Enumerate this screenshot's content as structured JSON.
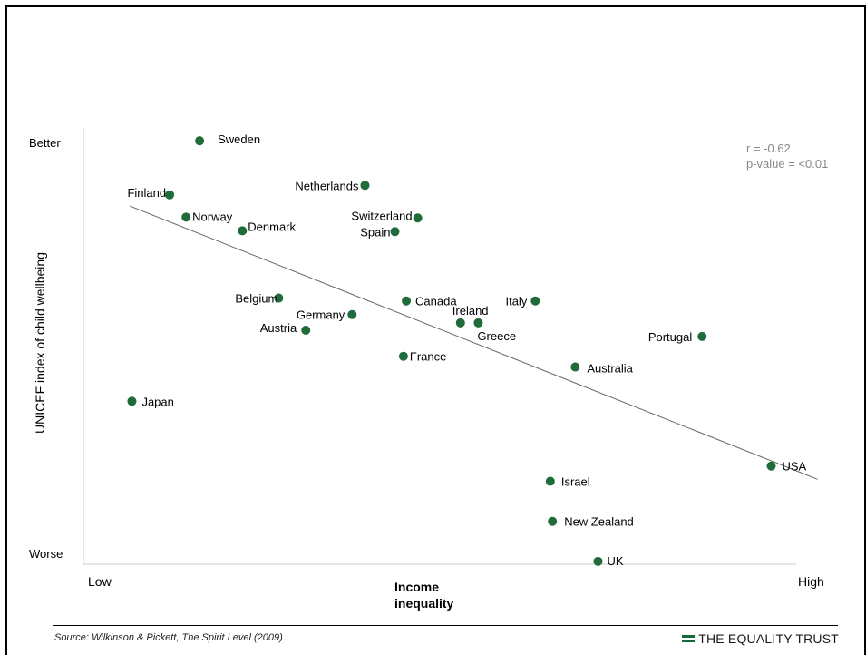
{
  "chart_data": {
    "type": "scatter",
    "title": "",
    "ylabel": "UNICEF index of child wellbeing",
    "xlabel": "Income inequality",
    "x_ticks": {
      "low": "Low",
      "high": "High"
    },
    "y_ticks": {
      "top": "Better",
      "bottom": "Worse"
    },
    "xlim": [
      0,
      100
    ],
    "ylim": [
      0,
      100
    ],
    "stats": {
      "r": "r = -0.62",
      "p": "p-value = <0.01"
    },
    "trend": {
      "x": [
        6.5,
        103
      ],
      "y": [
        84.6,
        18.4
      ]
    },
    "points": [
      {
        "label": "Sweden",
        "x": 16.3,
        "y": 100.4
      },
      {
        "label": "Netherlands",
        "x": 39.5,
        "y": 89.6
      },
      {
        "label": "Finland",
        "x": 12.1,
        "y": 87.3
      },
      {
        "label": "Norway",
        "x": 14.4,
        "y": 81.9
      },
      {
        "label": "Denmark",
        "x": 22.3,
        "y": 78.6
      },
      {
        "label": "Switzerland",
        "x": 46.9,
        "y": 81.7
      },
      {
        "label": "Spain",
        "x": 43.7,
        "y": 78.4
      },
      {
        "label": "Belgium",
        "x": 27.4,
        "y": 62.3
      },
      {
        "label": "Canada",
        "x": 45.3,
        "y": 61.6
      },
      {
        "label": "Italy",
        "x": 63.4,
        "y": 61.6
      },
      {
        "label": "Germany",
        "x": 37.7,
        "y": 58.3
      },
      {
        "label": "Ireland",
        "x": 52.9,
        "y": 56.3
      },
      {
        "label": "Greece",
        "x": 55.4,
        "y": 56.3
      },
      {
        "label": "Austria",
        "x": 31.2,
        "y": 54.5
      },
      {
        "label": "Portugal",
        "x": 86.8,
        "y": 53.0
      },
      {
        "label": "France",
        "x": 44.9,
        "y": 48.2
      },
      {
        "label": "Australia",
        "x": 69.0,
        "y": 45.6
      },
      {
        "label": "Japan",
        "x": 6.8,
        "y": 37.3
      },
      {
        "label": "USA",
        "x": 96.5,
        "y": 21.6
      },
      {
        "label": "Israel",
        "x": 65.5,
        "y": 17.9
      },
      {
        "label": "New Zealand",
        "x": 65.8,
        "y": 8.2
      },
      {
        "label": "UK",
        "x": 72.2,
        "y": -1.5
      }
    ]
  },
  "footer": {
    "source_prefix": "Source: Wilkinson & Pickett, ",
    "source_title": "The Spirit Level",
    "source_suffix": " (2009)",
    "brand": "THE EQUALITY TRUST"
  },
  "colors": {
    "point": "#1f6b3a",
    "trend": "#666666",
    "stats": "#888888",
    "axis": "#cccccc",
    "brand": "#0f6b3a"
  }
}
